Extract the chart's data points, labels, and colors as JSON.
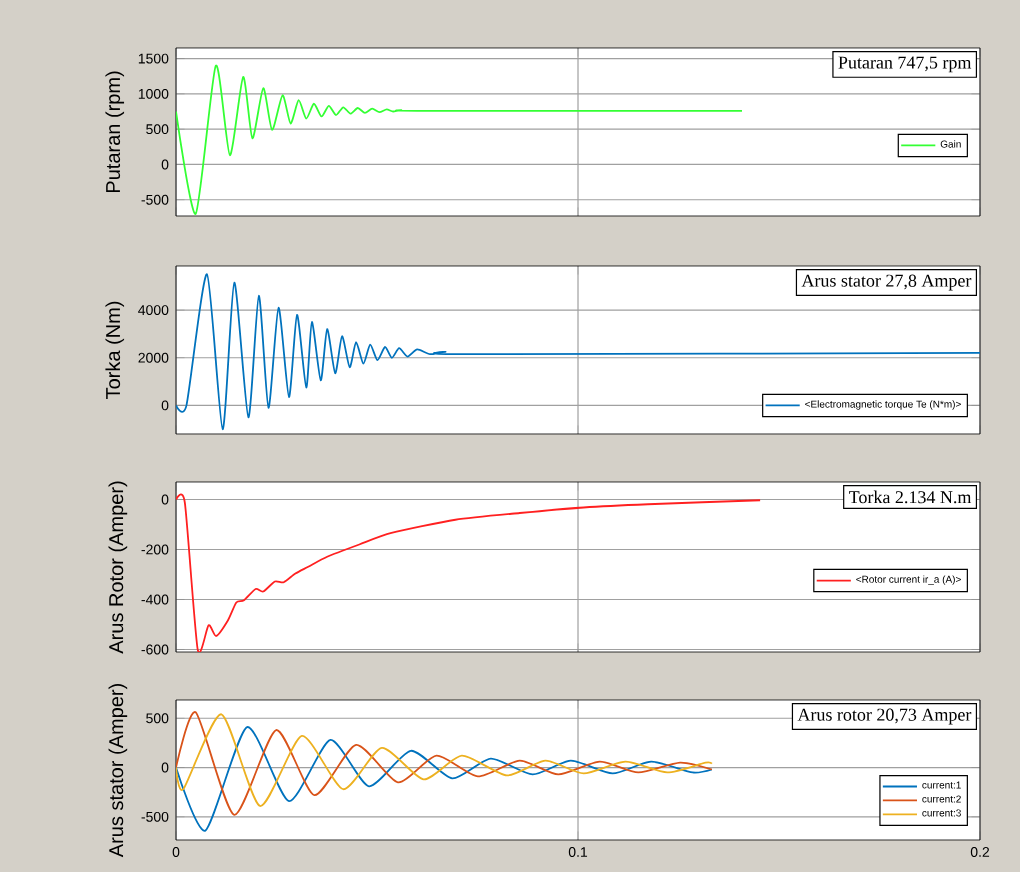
{
  "chart_data": [
    {
      "type": "line",
      "ylabel": "Putaran (rpm)",
      "xlim": [
        0,
        0.2
      ],
      "xticks": [
        0,
        0.1,
        0.2
      ],
      "ylim": [
        -730,
        1650
      ],
      "yticks": [
        -500,
        0,
        500,
        1000,
        1500
      ],
      "grid": true,
      "legend": "right",
      "tick_labels": "y",
      "annotations": [
        "Putaran 747,5 rpm"
      ],
      "series": [
        {
          "name": "Gain",
          "color": "#33ff33",
          "x": [
            0,
            0.0049,
            0.0099,
            0.0134,
            0.0167,
            0.019,
            0.0217,
            0.0239,
            0.0265,
            0.0285,
            0.0305,
            0.0324,
            0.0343,
            0.0362,
            0.038,
            0.0398,
            0.0416,
            0.0434,
            0.0452,
            0.047,
            0.0488,
            0.0506,
            0.0524,
            0.054,
            0.056,
            0.06,
            0.1408
          ],
          "values": [
            750,
            -700,
            1400,
            130,
            1240,
            370,
            1080,
            490,
            980,
            580,
            910,
            650,
            860,
            680,
            830,
            700,
            810,
            720,
            800,
            730,
            790,
            740,
            780,
            750,
            770,
            760,
            760
          ]
        }
      ]
    },
    {
      "type": "line",
      "ylabel": "Torka (Nm)",
      "xlim": [
        0,
        0.2
      ],
      "xticks": [
        0,
        0.1,
        0.2
      ],
      "ylim": [
        -1200,
        5850
      ],
      "yticks": [
        0,
        2000,
        4000
      ],
      "grid": true,
      "legend": "bottom right",
      "tick_labels": "y",
      "annotations": [
        "Arus stator 27,8 Amper"
      ],
      "series": [
        {
          "name": "<Electromagnetic torque Te (N*m)>",
          "color": "#0072bd",
          "x": [
            0,
            0.0026,
            0.0077,
            0.0116,
            0.0145,
            0.018,
            0.0206,
            0.023,
            0.0255,
            0.0281,
            0.0301,
            0.0324,
            0.0338,
            0.036,
            0.0376,
            0.0396,
            0.0413,
            0.0432,
            0.0448,
            0.0466,
            0.0483,
            0.0501,
            0.052,
            0.0537,
            0.0555,
            0.0576,
            0.06,
            0.0632,
            0.067,
            0.072,
            0.2
          ],
          "values": [
            0,
            0,
            5500,
            -1000,
            5150,
            -500,
            4600,
            -100,
            4100,
            350,
            3800,
            750,
            3500,
            1050,
            3200,
            1350,
            2900,
            1600,
            2650,
            1750,
            2550,
            1900,
            2450,
            2000,
            2400,
            2050,
            2350,
            2150,
            2250,
            2150,
            2200
          ]
        }
      ]
    },
    {
      "type": "line",
      "ylabel": "Arus Rotor (Amper)",
      "xlim": [
        0,
        0.2
      ],
      "xticks": [
        0,
        0.1,
        0.2
      ],
      "ylim": [
        -610,
        70
      ],
      "yticks": [
        -600,
        -400,
        -200,
        0
      ],
      "grid": true,
      "legend": "right",
      "tick_labels": "y",
      "annotations": [
        "Torka 2.134 N.m"
      ],
      "series": [
        {
          "name": "<Rotor current ir_a (A)>",
          "color": "#ff2020",
          "x": [
            0,
            0.0022,
            0.0054,
            0.0081,
            0.01,
            0.0129,
            0.015,
            0.0169,
            0.0198,
            0.0217,
            0.0246,
            0.0268,
            0.0297,
            0.0329,
            0.0376,
            0.0456,
            0.0536,
            0.0695,
            0.0855,
            0.1014,
            0.1174,
            0.1453
          ],
          "values": [
            0,
            -13,
            -600,
            -503,
            -546,
            -484,
            -412,
            -403,
            -358,
            -368,
            -328,
            -331,
            -296,
            -269,
            -229,
            -180,
            -134,
            -81,
            -54,
            -32,
            -19,
            -3
          ]
        }
      ]
    },
    {
      "type": "line",
      "ylabel": "Arus stator (Amper)",
      "xlim": [
        0,
        0.2
      ],
      "xticks": [
        0,
        0.1,
        0.2
      ],
      "ylim": [
        -735,
        685
      ],
      "yticks": [
        -500,
        0,
        500
      ],
      "grid": true,
      "legend": "bottom right",
      "annotations": [
        "Arus rotor 20,73 Amper"
      ],
      "series": [
        {
          "name": "current:1",
          "color": "#0072bd",
          "x": [
            0,
            0.0073,
            0.0177,
            0.0281,
            0.0384,
            0.048,
            0.0584,
            0.0687,
            0.0783,
            0.0887,
            0.0982,
            0.1086,
            0.1182,
            0.1285,
            0.1333
          ],
          "values": [
            0,
            -640,
            410,
            -340,
            280,
            -190,
            170,
            -110,
            90,
            -70,
            70,
            -60,
            60,
            -50,
            -20
          ]
        },
        {
          "name": "current:2",
          "color": "#d95319",
          "x": [
            0,
            0.0049,
            0.0145,
            0.0249,
            0.0344,
            0.0448,
            0.0552,
            0.0648,
            0.0751,
            0.0855,
            0.0951,
            0.1054,
            0.115,
            0.1254,
            0.1333
          ],
          "values": [
            0,
            560,
            -480,
            380,
            -280,
            230,
            -150,
            120,
            -90,
            70,
            -70,
            60,
            -50,
            50,
            -20
          ]
        },
        {
          "name": "current:3",
          "color": "#edb120",
          "x": [
            0,
            0.0018,
            0.0113,
            0.0209,
            0.0313,
            0.0416,
            0.0512,
            0.0616,
            0.0711,
            0.0823,
            0.0919,
            0.1014,
            0.1118,
            0.1222,
            0.1317,
            0.1333
          ],
          "values": [
            0,
            -220,
            540,
            -390,
            320,
            -220,
            200,
            -120,
            120,
            -80,
            70,
            -60,
            60,
            -50,
            50,
            40
          ]
        }
      ]
    }
  ]
}
